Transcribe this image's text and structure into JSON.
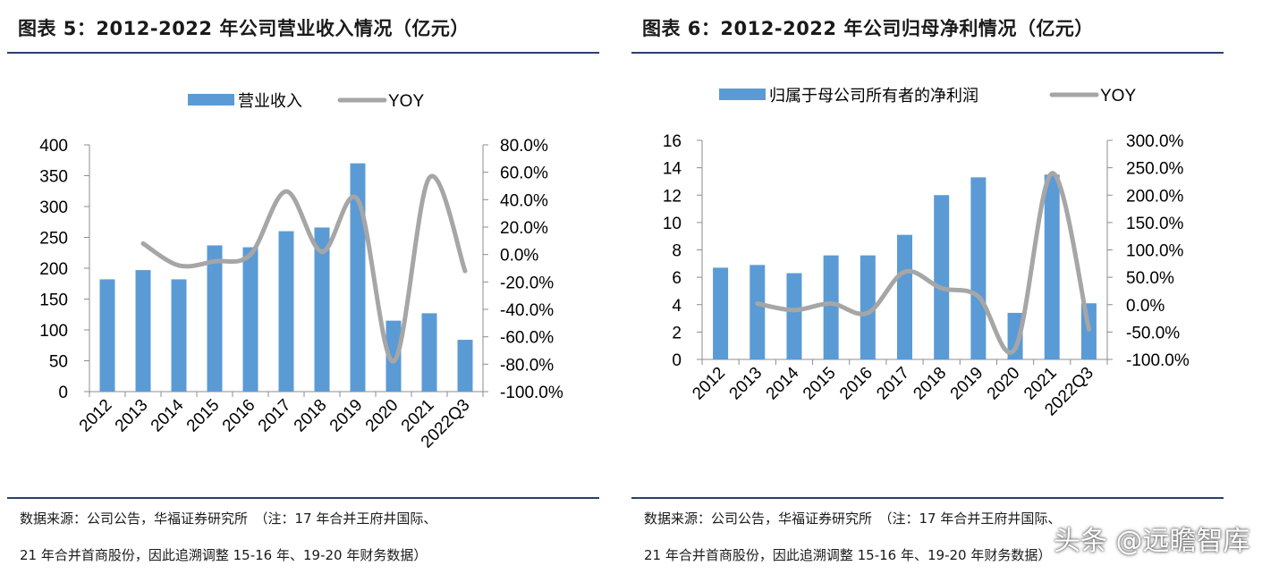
{
  "colors": {
    "bar": "#5b9bd5",
    "line": "#a6a6a6",
    "rule": "#2b3f6e"
  },
  "watermark": "头条 @远瞻智库",
  "chart_data": [
    {
      "type": "bar",
      "title": "图表 5：2012-2022 年公司营业收入情况（亿元）",
      "categories": [
        "2012",
        "2013",
        "2014",
        "2015",
        "2016",
        "2017",
        "2018",
        "2019",
        "2020",
        "2021",
        "2022Q3"
      ],
      "series": [
        {
          "name": "营业收入",
          "type": "bar",
          "axis": "left",
          "values": [
            182,
            197,
            182,
            237,
            234,
            260,
            266,
            370,
            115,
            127,
            84
          ]
        },
        {
          "name": "YOY",
          "type": "line",
          "axis": "right",
          "values": [
            null,
            8,
            -8,
            -5,
            0,
            46,
            2,
            40,
            -78,
            56,
            -12
          ]
        }
      ],
      "left_axis": {
        "min": 0,
        "max": 400,
        "ticks": [
          "0",
          "50",
          "100",
          "150",
          "200",
          "250",
          "300",
          "350",
          "400"
        ]
      },
      "right_axis": {
        "min": -100,
        "max": 80,
        "ticks": [
          "-100.0%",
          "-80.0%",
          "-60.0%",
          "-40.0%",
          "-20.0%",
          "0.0%",
          "20.0%",
          "40.0%",
          "60.0%",
          "80.0%"
        ]
      },
      "source_lines": [
        "数据来源：公司公告，华福证券研究所　（注：17 年合并王府井国际、",
        "21 年合并首商股份，因此追溯调整 15-16 年、19-20 年财务数据）"
      ]
    },
    {
      "type": "bar",
      "title": "图表 6：2012-2022 年公司归母净利情况（亿元）",
      "categories": [
        "2012",
        "2013",
        "2014",
        "2015",
        "2016",
        "2017",
        "2018",
        "2019",
        "2020",
        "2021",
        "2022Q3"
      ],
      "series": [
        {
          "name": "归属于母公司所有者的净利润",
          "type": "bar",
          "axis": "left",
          "values": [
            6.7,
            6.9,
            6.3,
            7.6,
            7.6,
            9.1,
            12.0,
            13.3,
            3.4,
            13.5,
            4.1
          ]
        },
        {
          "name": "YOY",
          "type": "line",
          "axis": "right",
          "values": [
            null,
            2,
            -10,
            2,
            -15,
            60,
            30,
            15,
            -80,
            240,
            -45
          ]
        }
      ],
      "left_axis": {
        "min": 0,
        "max": 16,
        "ticks": [
          "0",
          "2",
          "4",
          "6",
          "8",
          "10",
          "12",
          "14",
          "16"
        ]
      },
      "right_axis": {
        "min": -100,
        "max": 300,
        "ticks": [
          "-100.0%",
          "-50.0%",
          "0.0%",
          "50.0%",
          "100.0%",
          "150.0%",
          "200.0%",
          "250.0%",
          "300.0%"
        ]
      },
      "source_lines": [
        "数据来源：公司公告，华福证券研究所　（注：17 年合并王府井国际、",
        "21 年合并首商股份，因此追溯调整 15-16 年、19-20 年财务数据）"
      ]
    }
  ]
}
